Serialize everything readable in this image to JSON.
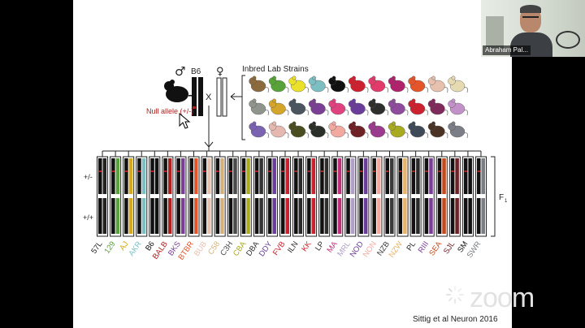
{
  "participant": {
    "name": "Abraham Pal..."
  },
  "slide": {
    "male_symbol": "♂",
    "female_symbol": "♀",
    "b6_label": "B6",
    "cross_symbol": "X",
    "null_allele_label": "Null allele (+/-)",
    "strains_title": "Inbred Lab Strains",
    "genotype_het": "+/-",
    "genotype_hom": "+/+",
    "f1_label": "F",
    "f1_sub": "1",
    "citation": "Sittig et al Neuron 2016",
    "colors": {
      "null_allele": "#b0201e",
      "bars": "#111111"
    },
    "mouse_grid": [
      [
        "#8b6b3e",
        "#58a23a",
        "#ece12a",
        "#7cbfc3",
        "#111111",
        "#cc2230",
        "#e23a6a",
        "#b0226c",
        "#e4552a",
        "#e7c1ae",
        "#e6dab3"
      ],
      [
        "#8f948c",
        "#d3a52b",
        "#4a5560",
        "#7a3f94",
        "#e0427f",
        "#6a3d9a",
        "#2e2f2d",
        "#8f4b9c",
        "#cc2230",
        "#7e2b5c",
        "#c291c7"
      ],
      [
        "#7a63b0",
        "#e6b9b0",
        "#4a4d20",
        "#2a2f28",
        "#f1a9a0",
        "#6e2226",
        "#9a3b8f",
        "#a8aa20",
        "#3e4a58",
        "#4a3325",
        "#7b7e86"
      ]
    ],
    "strains": [
      {
        "label": "57L",
        "color": "#222222"
      },
      {
        "label": "129",
        "color": "#58a23a"
      },
      {
        "label": "AJ",
        "color": "#d6a81c"
      },
      {
        "label": "AKR",
        "color": "#7cbfc3"
      },
      {
        "label": "B6",
        "color": "#111111"
      },
      {
        "label": "BALB",
        "color": "#b0201e"
      },
      {
        "label": "BKS",
        "color": "#7a3f94"
      },
      {
        "label": "BTBR",
        "color": "#e4552a"
      },
      {
        "label": "BUB",
        "color": "#e7c1ae"
      },
      {
        "label": "C58",
        "color": "#d6b07a"
      },
      {
        "label": "C3H",
        "color": "#4a4a4a"
      },
      {
        "label": "CBA",
        "color": "#a8aa20"
      },
      {
        "label": "DBA",
        "color": "#333333"
      },
      {
        "label": "DDY",
        "color": "#6a3d9a"
      },
      {
        "label": "FVB",
        "color": "#cc2230"
      },
      {
        "label": "ILN",
        "color": "#2a2a2a"
      },
      {
        "label": "KK",
        "color": "#cc2230"
      },
      {
        "label": "LP",
        "color": "#2e2f2d"
      },
      {
        "label": "MA",
        "color": "#c0307a"
      },
      {
        "label": "MRL",
        "color": "#b0a0c8"
      },
      {
        "label": "NOD",
        "color": "#6a3d9a"
      },
      {
        "label": "NON",
        "color": "#f1a9a0"
      },
      {
        "label": "NZB",
        "color": "#3a3a3a"
      },
      {
        "label": "NZW",
        "color": "#e6b46a"
      },
      {
        "label": "PL",
        "color": "#2a2a2a"
      },
      {
        "label": "RIII",
        "color": "#7a3f94"
      },
      {
        "label": "SEA",
        "color": "#c44a1a"
      },
      {
        "label": "SJL",
        "color": "#6e2226"
      },
      {
        "label": "SM",
        "color": "#111111"
      },
      {
        "label": "SWR",
        "color": "#7b7e86"
      }
    ]
  },
  "branding": {
    "wordmark": "zoom"
  }
}
